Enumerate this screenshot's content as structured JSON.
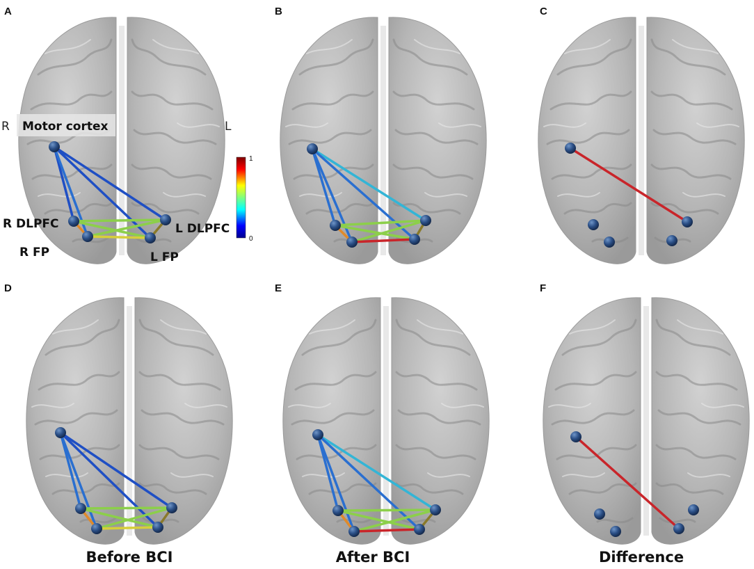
{
  "panels": [
    {
      "letter": "A"
    },
    {
      "letter": "B"
    },
    {
      "letter": "C"
    },
    {
      "letter": "D"
    },
    {
      "letter": "E"
    },
    {
      "letter": "F"
    }
  ],
  "orientation": {
    "right": "R",
    "left": "L"
  },
  "regions": {
    "motor": "Motor cortex",
    "rdlpfc": "R DLPFC",
    "ldlpfc": "L DLPFC",
    "rfp": "R FP",
    "lfp": "L FP"
  },
  "colorbar": {
    "max_label": "1",
    "min_label": "0"
  },
  "column_titles": {
    "before": "Before BCI",
    "after": "After BCI",
    "difference": "Difference"
  },
  "colors": {
    "brain_fill": "#b9b9b9",
    "brain_dark": "#8e8e8e",
    "node": "#2b4f86",
    "label_box": "#e6e6e6"
  }
}
